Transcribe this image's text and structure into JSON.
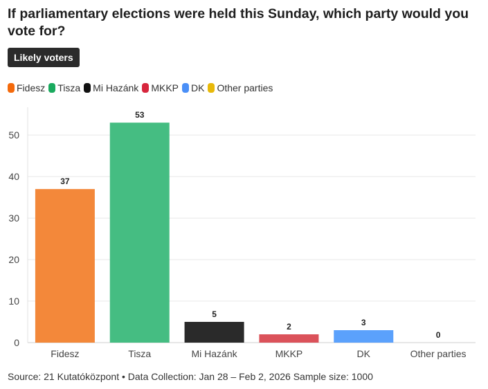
{
  "title": "If parliamentary elections were held this Sunday, which party would you vote for?",
  "badge": "Likely voters",
  "source": "Source: 21 Kutatóközpont • Data Collection: Jan 28 – Feb 2, 2026 Sample size: 1000",
  "chart_data": {
    "type": "bar",
    "categories": [
      "Fidesz",
      "Tisza",
      "Mi Hazánk",
      "MKKP",
      "DK",
      "Other parties"
    ],
    "values": [
      37,
      53,
      5,
      2,
      3,
      0
    ],
    "legend_colors": [
      "#f46a0c",
      "#1aaa5e",
      "#111111",
      "#d7263d",
      "#4a8ff7",
      "#e8b90a"
    ],
    "bar_colors": [
      "#f3883a",
      "#45bd82",
      "#2a2a2a",
      "#db525a",
      "#5ba1fc",
      "#e8b90a"
    ],
    "yticks": [
      0,
      10,
      20,
      30,
      40,
      50
    ],
    "ylim": [
      0,
      56.7
    ],
    "grid": true,
    "legend_placement": "top-left"
  }
}
